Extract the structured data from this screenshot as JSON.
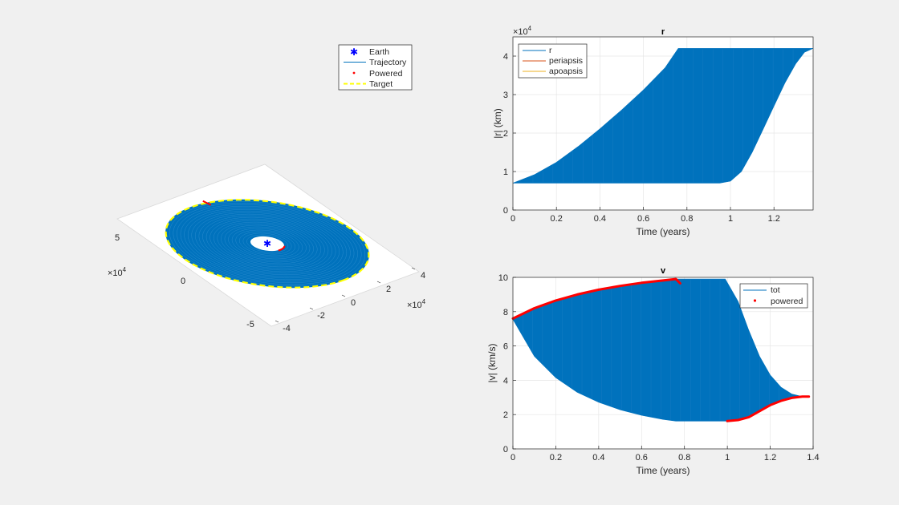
{
  "chart_data": [
    {
      "type": "scatter",
      "subtype": "3d-orbit",
      "title": "",
      "xlabel": "",
      "ylabel": "",
      "zlabel": "",
      "x_ticks": [
        -4,
        -2,
        0,
        2,
        4
      ],
      "y_ticks": [
        -5,
        0,
        5
      ],
      "x_multiplier": "10^4",
      "y_multiplier": "10^4",
      "xlim": [
        -4.2,
        4.2
      ],
      "ylim": [
        -4.2,
        4.2
      ],
      "earth_position": [
        0,
        0
      ],
      "target_radius": 42164,
      "start_radius": 7000,
      "legend_position": "top-right",
      "legend": [
        {
          "label": "Earth",
          "marker": "asterisk",
          "color": "#0000ff"
        },
        {
          "label": "Trajectory",
          "marker": "line",
          "color": "#0072bd"
        },
        {
          "label": "Powered",
          "marker": "dot",
          "color": "#ff0000"
        },
        {
          "label": "Target",
          "marker": "dashed-line",
          "color": "#ffff00"
        }
      ]
    },
    {
      "type": "area",
      "title": "r",
      "xlabel": "Time (years)",
      "ylabel": "|r| (km)",
      "y_multiplier": "10^4",
      "xlim": [
        0,
        1.38
      ],
      "ylim": [
        0,
        4.5
      ],
      "x_ticks": [
        "0",
        "0.2",
        "0.4",
        "0.6",
        "0.8",
        "1",
        "1.2"
      ],
      "y_ticks": [
        "0",
        "1",
        "2",
        "3",
        "4"
      ],
      "grid": true,
      "legend_position": "top-left",
      "series": [
        {
          "name": "r",
          "color": "#0072bd",
          "upper": {
            "x": [
              0,
              0.1,
              0.2,
              0.3,
              0.4,
              0.5,
              0.6,
              0.7,
              0.76,
              1.38
            ],
            "y": [
              0.7,
              0.92,
              1.24,
              1.65,
              2.11,
              2.6,
              3.12,
              3.7,
              4.2,
              4.2
            ]
          },
          "lower": {
            "x": [
              0,
              0.95,
              1.0,
              1.05,
              1.1,
              1.15,
              1.2,
              1.25,
              1.3,
              1.34,
              1.38
            ],
            "y": [
              0.7,
              0.7,
              0.75,
              1.0,
              1.5,
              2.1,
              2.7,
              3.3,
              3.8,
              4.1,
              4.2
            ]
          }
        },
        {
          "name": "periapsis",
          "color": "#d95319"
        },
        {
          "name": "apoapsis",
          "color": "#edb120"
        }
      ]
    },
    {
      "type": "area",
      "title": "v",
      "xlabel": "Time (years)",
      "ylabel": "|v| (km/s)",
      "xlim": [
        0,
        1.4
      ],
      "ylim": [
        0,
        10
      ],
      "x_ticks": [
        "0",
        "0.2",
        "0.4",
        "0.6",
        "0.8",
        "1",
        "1.2",
        "1.4"
      ],
      "y_ticks": [
        "0",
        "2",
        "4",
        "6",
        "8",
        "10"
      ],
      "grid": true,
      "legend_position": "top-right",
      "series": [
        {
          "name": "tot",
          "color": "#0072bd",
          "upper": {
            "x": [
              0,
              0.1,
              0.2,
              0.3,
              0.4,
              0.5,
              0.6,
              0.7,
              0.76,
              0.99,
              1.05,
              1.1,
              1.15,
              1.2,
              1.25,
              1.3,
              1.35,
              1.38
            ],
            "y": [
              7.55,
              8.2,
              8.65,
              9.0,
              9.28,
              9.5,
              9.68,
              9.82,
              9.9,
              9.9,
              8.6,
              6.9,
              5.4,
              4.3,
              3.6,
              3.2,
              3.05,
              3.05
            ]
          },
          "lower": {
            "x": [
              0,
              0.1,
              0.2,
              0.3,
              0.4,
              0.5,
              0.6,
              0.7,
              0.76,
              1.0,
              1.05,
              1.1,
              1.15,
              1.2,
              1.25,
              1.3,
              1.35,
              1.38
            ],
            "y": [
              7.55,
              5.4,
              4.15,
              3.3,
              2.72,
              2.28,
              1.96,
              1.72,
              1.62,
              1.62,
              1.68,
              1.85,
              2.2,
              2.55,
              2.8,
              2.97,
              3.05,
              3.05
            ]
          }
        },
        {
          "name": "powered",
          "color": "#ff0000",
          "marker": "dot",
          "segments": [
            {
              "x": [
                0,
                0.1,
                0.2,
                0.3,
                0.4,
                0.5,
                0.6,
                0.7,
                0.76,
                0.78
              ],
              "y": [
                7.6,
                8.2,
                8.65,
                9.0,
                9.28,
                9.5,
                9.68,
                9.82,
                9.9,
                9.65
              ]
            },
            {
              "x": [
                1.0,
                1.05,
                1.1,
                1.15,
                1.2,
                1.25,
                1.3,
                1.35,
                1.38
              ],
              "y": [
                1.62,
                1.68,
                1.85,
                2.2,
                2.55,
                2.8,
                2.97,
                3.05,
                3.05
              ]
            }
          ]
        }
      ]
    }
  ]
}
